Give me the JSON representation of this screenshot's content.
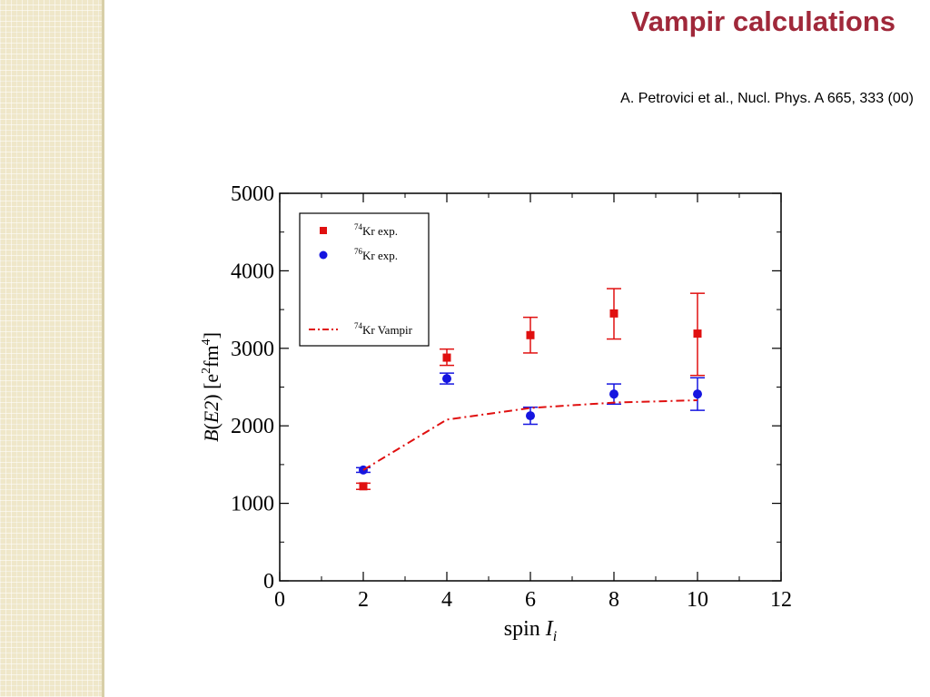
{
  "slide": {
    "title": "Vampir calculations",
    "citation": "A. Petrovici et al., Nucl. Phys. A 665, 333 (00)"
  },
  "chart_data": {
    "type": "scatter",
    "xlabel": "spin I_i",
    "ylabel": "B(E2)  [e^2fm^4]",
    "xlim": [
      0,
      12
    ],
    "ylim": [
      0,
      5000
    ],
    "xticks": [
      0,
      2,
      4,
      6,
      8,
      10,
      12
    ],
    "yticks": [
      0,
      1000,
      2000,
      3000,
      4000,
      5000
    ],
    "grid": false,
    "legend_position": "top-left",
    "series": [
      {
        "name": "74Kr exp.",
        "marker": "square",
        "color": "#e01010",
        "x": [
          2,
          4,
          6,
          8,
          10
        ],
        "y": [
          1220,
          2880,
          3170,
          3450,
          3190
        ],
        "err_low": [
          40,
          100,
          230,
          330,
          540
        ],
        "err_high": [
          40,
          110,
          230,
          320,
          520
        ]
      },
      {
        "name": "76Kr exp.",
        "marker": "circle",
        "color": "#1515e0",
        "x": [
          2,
          4,
          6,
          8,
          10
        ],
        "y": [
          1430,
          2610,
          2130,
          2410,
          2410
        ],
        "err_low": [
          30,
          70,
          110,
          130,
          210
        ],
        "err_high": [
          30,
          70,
          110,
          130,
          210
        ]
      },
      {
        "name": "74Kr Vampir",
        "marker": "line",
        "color": "#e01010",
        "x": [
          2,
          4,
          6,
          8,
          10
        ],
        "y": [
          1430,
          2080,
          2230,
          2300,
          2330
        ]
      }
    ]
  }
}
